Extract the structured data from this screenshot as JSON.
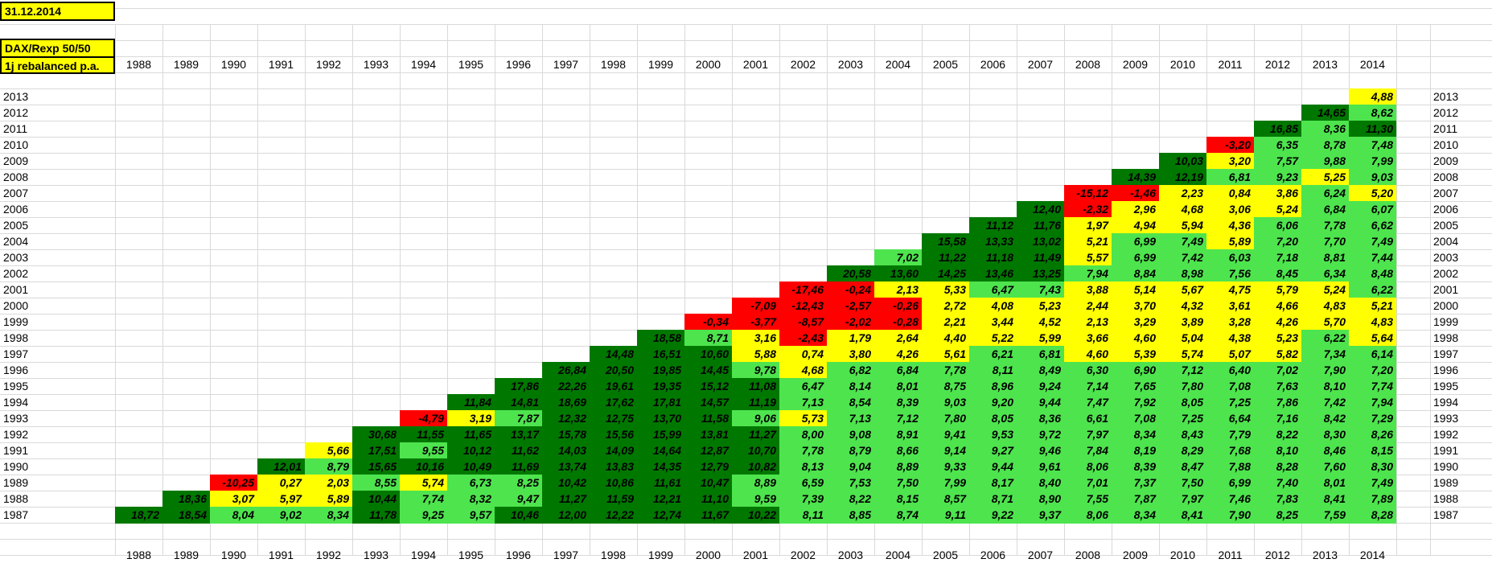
{
  "date_label": "31.12.2014",
  "title": "DAX/Rexp 50/50",
  "subtitle": "1j rebalanced p.a.",
  "columns": [
    "1988",
    "1989",
    "1990",
    "1991",
    "1992",
    "1993",
    "1994",
    "1995",
    "1996",
    "1997",
    "1998",
    "1999",
    "2000",
    "2001",
    "2002",
    "2003",
    "2004",
    "2005",
    "2006",
    "2007",
    "2008",
    "2009",
    "2010",
    "2011",
    "2012",
    "2013",
    "2014"
  ],
  "color_rules": [
    {
      "max": 0,
      "color": "#ff0000"
    },
    {
      "max": 6,
      "color": "#ffff00"
    },
    {
      "max": 10,
      "color": "#4ee44e"
    },
    {
      "color": "#007800"
    }
  ],
  "rows": [
    {
      "year": "2013",
      "values": [
        "4,88"
      ]
    },
    {
      "year": "2012",
      "values": [
        "14,65",
        "8,62"
      ]
    },
    {
      "year": "2011",
      "values": [
        "16,85",
        "8,36",
        "11,30"
      ]
    },
    {
      "year": "2010",
      "values": [
        "-3,20",
        "6,35",
        "8,78",
        "7,48"
      ]
    },
    {
      "year": "2009",
      "values": [
        "10,03",
        "3,20",
        "7,57",
        "9,88",
        "7,99"
      ]
    },
    {
      "year": "2008",
      "values": [
        "14,39",
        "12,19",
        "6,81",
        "9,23",
        "5,25",
        "9,03"
      ]
    },
    {
      "year": "2007",
      "values": [
        "-15,12",
        "-1,46",
        "2,23",
        "0,84",
        "3,86",
        "6,24",
        "5,20"
      ]
    },
    {
      "year": "2006",
      "values": [
        "12,40",
        "-2,32",
        "2,96",
        "4,68",
        "3,06",
        "5,24",
        "6,84",
        "6,07"
      ]
    },
    {
      "year": "2005",
      "values": [
        "11,12",
        "11,76",
        "1,97",
        "4,94",
        "5,94",
        "4,36",
        "6,06",
        "7,78",
        "6,62"
      ]
    },
    {
      "year": "2004",
      "values": [
        "15,58",
        "13,33",
        "13,02",
        "5,21",
        "6,99",
        "7,49",
        "5,89",
        "7,20",
        "7,70",
        "7,49"
      ]
    },
    {
      "year": "2003",
      "values": [
        "7,02",
        "11,22",
        "11,18",
        "11,49",
        "5,57",
        "6,99",
        "7,42",
        "6,03",
        "7,18",
        "8,81",
        "7,44"
      ]
    },
    {
      "year": "2002",
      "values": [
        "20,58",
        "13,60",
        "14,25",
        "13,46",
        "13,25",
        "7,94",
        "8,84",
        "8,98",
        "7,56",
        "8,45",
        "6,34",
        "8,48"
      ]
    },
    {
      "year": "2001",
      "values": [
        "-17,46",
        "-0,24",
        "2,13",
        "5,33",
        "6,47",
        "7,43",
        "3,88",
        "5,14",
        "5,67",
        "4,75",
        "5,79",
        "5,24",
        "6,22"
      ]
    },
    {
      "year": "2000",
      "values": [
        "-7,09",
        "-12,43",
        "-2,57",
        "-0,26",
        "2,72",
        "4,08",
        "5,23",
        "2,44",
        "3,70",
        "4,32",
        "3,61",
        "4,66",
        "4,83",
        "5,21"
      ]
    },
    {
      "year": "1999",
      "values": [
        "-0,34",
        "-3,77",
        "-8,57",
        "-2,02",
        "-0,28",
        "2,21",
        "3,44",
        "4,52",
        "2,13",
        "3,29",
        "3,89",
        "3,28",
        "4,26",
        "5,70",
        "4,83"
      ]
    },
    {
      "year": "1998",
      "values": [
        "18,58",
        "8,71",
        "3,16",
        "-2,43",
        "1,79",
        "2,64",
        "4,40",
        "5,22",
        "5,99",
        "3,66",
        "4,60",
        "5,04",
        "4,38",
        "5,23",
        "6,22",
        "5,64"
      ]
    },
    {
      "year": "1997",
      "values": [
        "14,48",
        "16,51",
        "10,60",
        "5,88",
        "0,74",
        "3,80",
        "4,26",
        "5,61",
        "6,21",
        "6,81",
        "4,60",
        "5,39",
        "5,74",
        "5,07",
        "5,82",
        "7,34",
        "6,14"
      ]
    },
    {
      "year": "1996",
      "values": [
        "26,84",
        "20,50",
        "19,85",
        "14,45",
        "9,78",
        "4,68",
        "6,82",
        "6,84",
        "7,78",
        "8,11",
        "8,49",
        "6,30",
        "6,90",
        "7,12",
        "6,40",
        "7,02",
        "7,90",
        "7,20"
      ]
    },
    {
      "year": "1995",
      "values": [
        "17,86",
        "22,26",
        "19,61",
        "19,35",
        "15,12",
        "11,08",
        "6,47",
        "8,14",
        "8,01",
        "8,75",
        "8,96",
        "9,24",
        "7,14",
        "7,65",
        "7,80",
        "7,08",
        "7,63",
        "8,10",
        "7,74"
      ]
    },
    {
      "year": "1994",
      "values": [
        "11,84",
        "14,81",
        "18,69",
        "17,62",
        "17,81",
        "14,57",
        "11,19",
        "7,13",
        "8,54",
        "8,39",
        "9,03",
        "9,20",
        "9,44",
        "7,47",
        "7,92",
        "8,05",
        "7,25",
        "7,86",
        "7,42",
        "7,94"
      ]
    },
    {
      "year": "1993",
      "values": [
        "-4,79",
        "3,19",
        "7,87",
        "12,32",
        "12,75",
        "13,70",
        "11,58",
        "9,06",
        "5,73",
        "7,13",
        "7,12",
        "7,80",
        "8,05",
        "8,36",
        "6,61",
        "7,08",
        "7,25",
        "6,64",
        "7,16",
        "8,42",
        "7,29"
      ]
    },
    {
      "year": "1992",
      "values": [
        "30,68",
        "11,55",
        "11,65",
        "13,17",
        "15,78",
        "15,56",
        "15,99",
        "13,81",
        "11,27",
        "8,00",
        "9,08",
        "8,91",
        "9,41",
        "9,53",
        "9,72",
        "7,97",
        "8,34",
        "8,43",
        "7,79",
        "8,22",
        "8,30",
        "8,26"
      ]
    },
    {
      "year": "1991",
      "values": [
        "5,66",
        "17,51",
        "9,55",
        "10,12",
        "11,62",
        "14,03",
        "14,09",
        "14,64",
        "12,87",
        "10,70",
        "7,78",
        "8,79",
        "8,66",
        "9,14",
        "9,27",
        "9,46",
        "7,84",
        "8,19",
        "8,29",
        "7,68",
        "8,10",
        "8,46",
        "8,15"
      ]
    },
    {
      "year": "1990",
      "values": [
        "12,01",
        "8,79",
        "15,65",
        "10,16",
        "10,49",
        "11,69",
        "13,74",
        "13,83",
        "14,35",
        "12,79",
        "10,82",
        "8,13",
        "9,04",
        "8,89",
        "9,33",
        "9,44",
        "9,61",
        "8,06",
        "8,39",
        "8,47",
        "7,88",
        "8,28",
        "7,60",
        "8,30"
      ]
    },
    {
      "year": "1989",
      "values": [
        "-10,25",
        "0,27",
        "2,03",
        "8,55",
        "5,74",
        "6,73",
        "8,25",
        "10,42",
        "10,86",
        "11,61",
        "10,47",
        "8,89",
        "6,59",
        "7,53",
        "7,50",
        "7,99",
        "8,17",
        "8,40",
        "7,01",
        "7,37",
        "7,50",
        "6,99",
        "7,40",
        "8,01",
        "7,49"
      ]
    },
    {
      "year": "1988",
      "values": [
        "18,36",
        "3,07",
        "5,97",
        "5,89",
        "10,44",
        "7,74",
        "8,32",
        "9,47",
        "11,27",
        "11,59",
        "12,21",
        "11,10",
        "9,59",
        "7,39",
        "8,22",
        "8,15",
        "8,57",
        "8,71",
        "8,90",
        "7,55",
        "7,87",
        "7,97",
        "7,46",
        "7,83",
        "8,41",
        "7,89"
      ]
    },
    {
      "year": "1987",
      "values": [
        "18,72",
        "18,54",
        "8,04",
        "9,02",
        "8,34",
        "11,78",
        "9,25",
        "9,57",
        "10,46",
        "12,00",
        "12,22",
        "12,74",
        "11,67",
        "10,22",
        "8,11",
        "8,85",
        "8,74",
        "9,11",
        "9,22",
        "9,37",
        "8,06",
        "8,34",
        "8,41",
        "7,90",
        "8,25",
        "7,59",
        "8,28"
      ]
    }
  ]
}
